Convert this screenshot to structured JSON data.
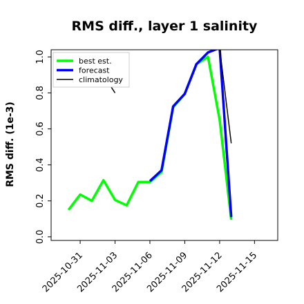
{
  "chart_data": {
    "type": "line",
    "title": "RMS diff., layer 1 salinity",
    "xlabel": "",
    "ylabel": "RMS diff. (1e-3)",
    "x_range": [
      "2025-10-28T12:00",
      "2025-11-17T00:00"
    ],
    "ylim": [
      -0.02,
      1.04
    ],
    "yticks": [
      0.0,
      0.2,
      0.4,
      0.6,
      0.8,
      1.0
    ],
    "ytick_labels": [
      "0.0",
      "0.2",
      "0.4",
      "0.6",
      "0.8",
      "1.0"
    ],
    "xticks": [
      "2025-10-31",
      "2025-11-03",
      "2025-11-06",
      "2025-11-09",
      "2025-11-12",
      "2025-11-15"
    ],
    "xtick_labels": [
      "2025-10-31",
      "2025-11-03",
      "2025-11-06",
      "2025-11-09",
      "2025-11-12",
      "2025-11-15"
    ],
    "highlight_tick": "2025-11-06",
    "highlight_color": "#228b22",
    "grid": false,
    "legend_position": "top-left",
    "series": [
      {
        "name": "best est.",
        "color": "#00ff00",
        "points": [
          [
            "2025-10-30T00:00",
            0.15
          ],
          [
            "2025-10-31T00:00",
            0.235
          ],
          [
            "2025-11-01T00:00",
            0.2
          ],
          [
            "2025-11-02T00:00",
            0.315
          ],
          [
            "2025-11-03T00:00",
            0.205
          ],
          [
            "2025-11-04T00:00",
            0.175
          ],
          [
            "2025-11-05T00:00",
            0.305
          ],
          [
            "2025-11-06T00:00",
            0.305
          ],
          [
            "2025-11-07T00:00",
            0.36
          ],
          [
            "2025-11-08T00:00",
            0.72
          ],
          [
            "2025-11-09T00:00",
            0.795
          ],
          [
            "2025-11-10T00:00",
            0.96
          ],
          [
            "2025-11-11T00:00",
            1.0
          ],
          [
            "2025-11-12T00:00",
            0.65
          ],
          [
            "2025-11-13T00:00",
            0.095
          ]
        ]
      },
      {
        "name": "forecast",
        "color": "#0000ff",
        "points": [
          [
            "2025-11-06T00:00",
            0.31
          ],
          [
            "2025-11-07T00:00",
            0.37
          ],
          [
            "2025-11-08T00:00",
            0.725
          ],
          [
            "2025-11-09T00:00",
            0.795
          ],
          [
            "2025-11-10T00:00",
            0.96
          ],
          [
            "2025-11-11T00:00",
            1.025
          ],
          [
            "2025-11-12T00:00",
            1.05
          ],
          [
            "2025-11-13T00:00",
            0.11
          ]
        ]
      },
      {
        "name": "climatology",
        "color": "#000000",
        "points": [
          [
            "2025-11-12T00:00",
            1.05
          ],
          [
            "2025-11-13T00:00",
            0.52
          ]
        ]
      },
      {
        "name": "climatology",
        "color": "#000000",
        "points": [
          [
            "2025-11-02T12:00",
            0.85
          ],
          [
            "2025-11-03T00:00",
            0.8
          ]
        ]
      }
    ]
  }
}
